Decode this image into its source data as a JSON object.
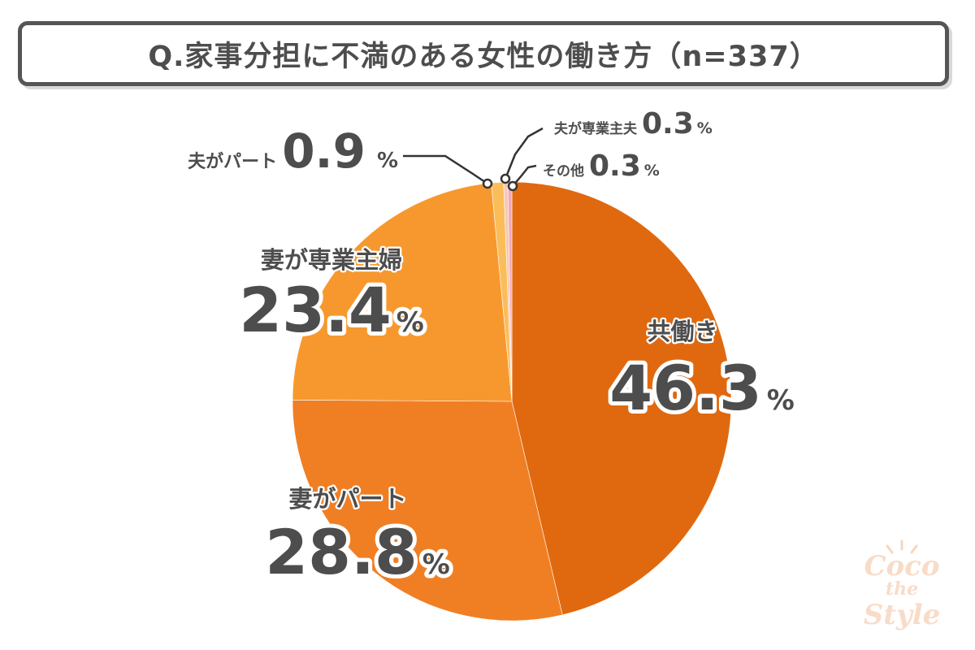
{
  "title": "Q.家事分担に不満のある女性の働き方（n=337）",
  "chart_data": {
    "type": "pie",
    "categories": [
      "共働き",
      "妻がパート",
      "妻が専業主婦",
      "夫がパート",
      "夫が専業主夫",
      "その他"
    ],
    "values": [
      46.3,
      28.8,
      23.4,
      0.9,
      0.3,
      0.3
    ],
    "unit": "%",
    "colors": [
      "#e0690f",
      "#f07f24",
      "#f7982e",
      "#fbbd5a",
      "#f6c9b3",
      "#f2a8b8"
    ],
    "value_labels": [
      "46.3",
      "28.8",
      "23.4",
      "0.9",
      "0.3",
      "0.3"
    ]
  },
  "watermark": {
    "lines": [
      "Coco",
      "the",
      "Style"
    ]
  }
}
